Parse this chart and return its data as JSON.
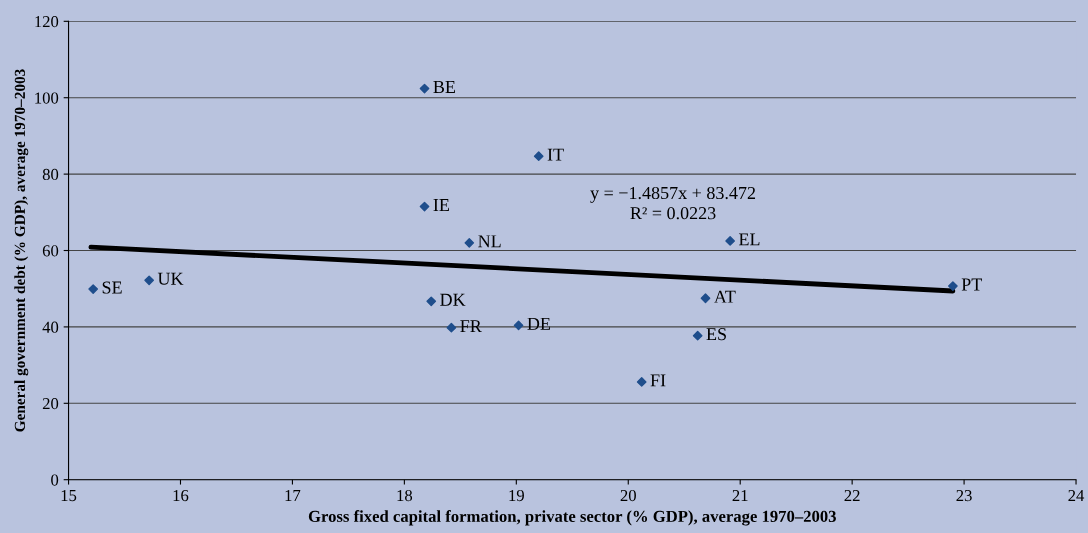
{
  "chart_data": {
    "type": "scatter",
    "xlabel": "Gross fixed capital formation, private sector (% GDP), average 1970–2003",
    "ylabel": "General government debt (% GDP), average 1970–2003",
    "xlim": [
      15,
      24
    ],
    "xticks": [
      15,
      16,
      17,
      18,
      19,
      20,
      21,
      22,
      23,
      24
    ],
    "ylim": [
      0,
      120
    ],
    "yticks": [
      0,
      20,
      40,
      60,
      80,
      100,
      120
    ],
    "grid": "y",
    "legend": false,
    "marker": "diamond",
    "series": [
      {
        "color": "#1f4e8c",
        "x": [
          15.22,
          15.72,
          18.18,
          19.2,
          18.18,
          18.58,
          20.91,
          22.9,
          18.24,
          20.69,
          18.42,
          19.02,
          20.62,
          20.12
        ],
        "values": [
          49.9,
          52.2,
          102.4,
          84.7,
          71.5,
          62.0,
          62.5,
          50.7,
          46.7,
          47.5,
          39.8,
          40.4,
          37.7,
          25.6
        ]
      },
      {
        "type": "line",
        "color": "#000000",
        "marker": "none",
        "x": [
          15.2,
          22.9
        ],
        "values": [
          60.9,
          49.4
        ]
      }
    ],
    "annotations": [
      {
        "text": "SE",
        "x": 15.22,
        "y": 49.9
      },
      {
        "text": "UK",
        "x": 15.72,
        "y": 52.2
      },
      {
        "text": "BE",
        "x": 18.18,
        "y": 102.4
      },
      {
        "text": "IT",
        "x": 19.2,
        "y": 84.7
      },
      {
        "text": "IE",
        "x": 18.18,
        "y": 71.5
      },
      {
        "text": "NL",
        "x": 18.58,
        "y": 62.0
      },
      {
        "text": "EL",
        "x": 20.91,
        "y": 62.5
      },
      {
        "text": "PT",
        "x": 22.9,
        "y": 50.7
      },
      {
        "text": "DK",
        "x": 18.24,
        "y": 46.7
      },
      {
        "text": "AT",
        "x": 20.69,
        "y": 47.5
      },
      {
        "text": "FR",
        "x": 18.42,
        "y": 39.8
      },
      {
        "text": "DE",
        "x": 19.02,
        "y": 40.4
      },
      {
        "text": "ES",
        "x": 20.62,
        "y": 37.7
      },
      {
        "text": "FI",
        "x": 20.12,
        "y": 25.6
      },
      "y = −1.4857x + 83.472\nR² = 0.0223"
    ]
  }
}
